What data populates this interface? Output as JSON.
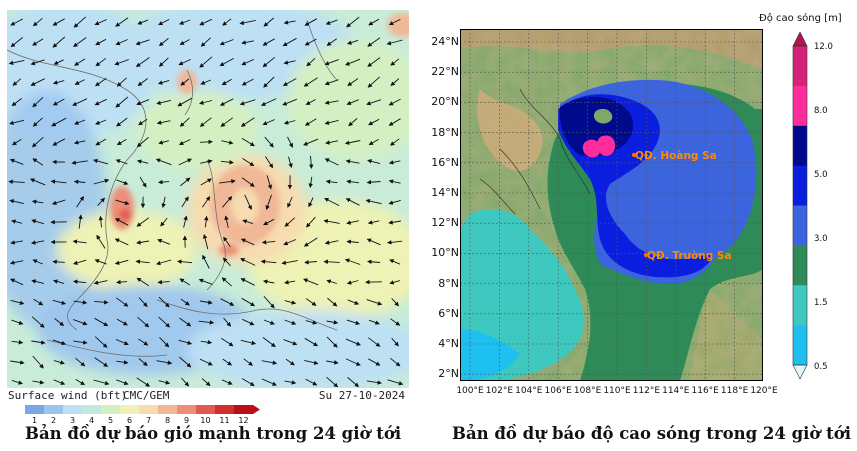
{
  "wind_map": {
    "footer_left": "Surface wind (bft)",
    "footer_center": "CMC/GEM",
    "footer_right": "Su 27-10-2024",
    "scale_ticks": [
      "1",
      "2",
      "3",
      "4",
      "5",
      "6",
      "7",
      "8",
      "9",
      "10",
      "11",
      "12"
    ],
    "scale_colors": [
      "#7aa7e8",
      "#9cc4f0",
      "#bde0f4",
      "#c2eadc",
      "#d4f0c2",
      "#eef2b4",
      "#f6dcb0",
      "#f0b897",
      "#ec8e78",
      "#e05a4e",
      "#d0302a",
      "#b80f18"
    ],
    "caption": "Bản đồ dự báo gió mạnh trong 24 giờ tới"
  },
  "wave_map": {
    "lat_labels": [
      "24°N",
      "22°N",
      "20°N",
      "18°N",
      "16°N",
      "14°N",
      "12°N",
      "10°N",
      "8°N",
      "6°N",
      "4°N",
      "2°N"
    ],
    "lon_labels": [
      "100°E",
      "102°E",
      "104°E",
      "106°E",
      "108°E",
      "110°E",
      "112°E",
      "114°E",
      "116°E",
      "118°E",
      "120°E"
    ],
    "place_labels": [
      "QĐ. Hoàng Sa",
      "QĐ. Trường Sa"
    ],
    "colorbar_title": "Độ cao sóng [m]",
    "colorbar_ticks": [
      "12.0",
      "8.0",
      "5.0",
      "3.0",
      "1.5",
      "0.5"
    ],
    "colorbar_colors": [
      "#d6237a",
      "#ff2d9c",
      "#000a8c",
      "#0a1ee0",
      "#3c64dc",
      "#2e8b57",
      "#3ec8c0",
      "#1ec0f0"
    ],
    "caption": "Bản đồ dự báo độ cao sóng trong 24 giờ tới"
  }
}
